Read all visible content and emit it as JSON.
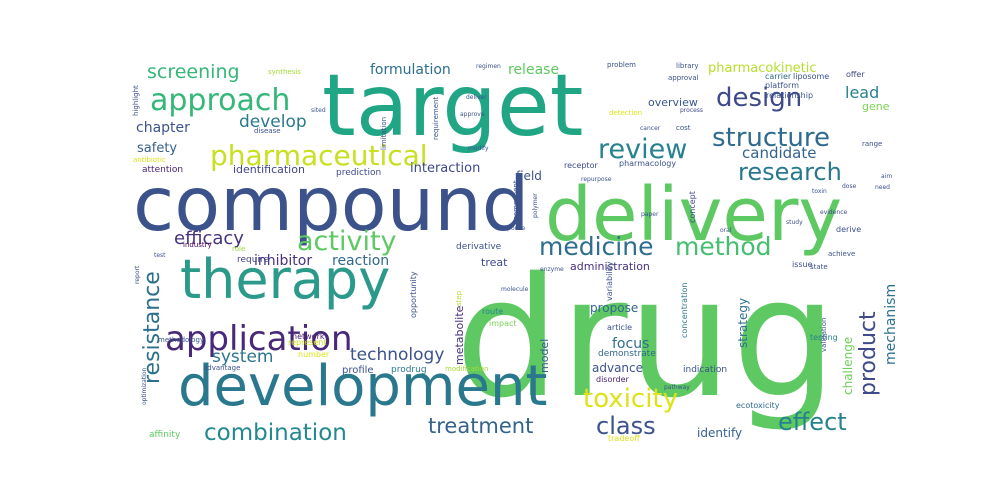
{
  "wordcloud": {
    "words": [
      {
        "text": "drug",
        "color": "#5ec962"
      },
      {
        "text": "target",
        "color": "#21a685"
      },
      {
        "text": "compound",
        "color": "#3b528b"
      },
      {
        "text": "delivery",
        "color": "#5ec962"
      },
      {
        "text": "development",
        "color": "#2a788e"
      },
      {
        "text": "therapy",
        "color": "#2c9a8a"
      },
      {
        "text": "application",
        "color": "#482878"
      },
      {
        "text": "pharmaceutical",
        "color": "#c8e020"
      },
      {
        "text": "approach",
        "color": "#35b779"
      },
      {
        "text": "activity",
        "color": "#5ec962"
      },
      {
        "text": "structure",
        "color": "#2f6b8e"
      },
      {
        "text": "design",
        "color": "#3e4a89"
      },
      {
        "text": "review",
        "color": "#26828e"
      },
      {
        "text": "research",
        "color": "#2a788e"
      },
      {
        "text": "medicine",
        "color": "#2e6e8e"
      },
      {
        "text": "method",
        "color": "#44bf70"
      },
      {
        "text": "toxicity",
        "color": "#dde318"
      },
      {
        "text": "class",
        "color": "#3b528b"
      },
      {
        "text": "effect",
        "color": "#26828e"
      },
      {
        "text": "treatment",
        "color": "#33638d"
      },
      {
        "text": "combination",
        "color": "#23898e"
      },
      {
        "text": "resistance",
        "color": "#2d708e"
      },
      {
        "text": "product",
        "color": "#3e4a89"
      },
      {
        "text": "screening",
        "color": "#35b779"
      },
      {
        "text": "efficacy",
        "color": "#46337e"
      },
      {
        "text": "technology",
        "color": "#3b528b"
      },
      {
        "text": "system",
        "color": "#2c738e"
      },
      {
        "text": "develop",
        "color": "#2a788e"
      },
      {
        "text": "inhibitor",
        "color": "#46327e"
      },
      {
        "text": "reaction",
        "color": "#31688e"
      },
      {
        "text": "candidate",
        "color": "#33638d"
      },
      {
        "text": "formulation",
        "color": "#2e6e8e"
      },
      {
        "text": "release",
        "color": "#5ec962"
      },
      {
        "text": "pharmacokinetic",
        "color": "#b5de2b"
      },
      {
        "text": "lead",
        "color": "#26828e"
      },
      {
        "text": "gene",
        "color": "#7ad151"
      },
      {
        "text": "chapter",
        "color": "#3b528b"
      },
      {
        "text": "safety",
        "color": "#355f8d"
      },
      {
        "text": "interaction",
        "color": "#3e4a89"
      },
      {
        "text": "identification",
        "color": "#404688"
      },
      {
        "text": "mechanism",
        "color": "#2c718e"
      },
      {
        "text": "challenge",
        "color": "#6ece58"
      },
      {
        "text": "strategy",
        "color": "#2d708e"
      },
      {
        "text": "advance",
        "color": "#3b528b"
      },
      {
        "text": "focus",
        "color": "#2e6e8e"
      },
      {
        "text": "propose",
        "color": "#31688e"
      },
      {
        "text": "model",
        "color": "#365c8d"
      },
      {
        "text": "identify",
        "color": "#355f8d"
      },
      {
        "text": "field",
        "color": "#3b528b"
      },
      {
        "text": "overview",
        "color": "#38588c"
      },
      {
        "text": "metabolite",
        "color": "#472d7b"
      },
      {
        "text": "administration",
        "color": "#46337e"
      },
      {
        "text": "treat",
        "color": "#3f4889"
      },
      {
        "text": "derivative",
        "color": "#3b528b"
      },
      {
        "text": "prediction",
        "color": "#3e4a89"
      },
      {
        "text": "attention",
        "color": "#481f70"
      },
      {
        "text": "industry",
        "color": "#440154"
      },
      {
        "text": "require",
        "color": "#414487"
      },
      {
        "text": "role",
        "color": "#9bd93c"
      },
      {
        "text": "network",
        "color": "#481a6c"
      },
      {
        "text": "number",
        "color": "#dde318"
      },
      {
        "text": "represent",
        "color": "#cde11d"
      },
      {
        "text": "profile",
        "color": "#3b528b"
      },
      {
        "text": "prodrug",
        "color": "#2a788e"
      },
      {
        "text": "modification",
        "color": "#a5db36"
      },
      {
        "text": "demonstrate",
        "color": "#31688e"
      },
      {
        "text": "indication",
        "color": "#3b528b"
      },
      {
        "text": "disorder",
        "color": "#481f70"
      },
      {
        "text": "ecotoxicity",
        "color": "#31688e"
      },
      {
        "text": "affinity",
        "color": "#5ec962"
      },
      {
        "text": "tradeoff",
        "color": "#dde318"
      },
      {
        "text": "article",
        "color": "#3b528b"
      },
      {
        "text": "impact",
        "color": "#7ad151"
      },
      {
        "text": "route",
        "color": "#26828e"
      },
      {
        "text": "step",
        "color": "#b5de2b"
      },
      {
        "text": "opportunity",
        "color": "#3b528b"
      },
      {
        "text": "testing",
        "color": "#26828e"
      },
      {
        "text": "issue",
        "color": "#3e4a89"
      },
      {
        "text": "state",
        "color": "#3b528b"
      },
      {
        "text": "achieve",
        "color": "#3b528b"
      },
      {
        "text": "derive",
        "color": "#3b528b"
      },
      {
        "text": "evidence",
        "color": "#3e4a89"
      },
      {
        "text": "validation",
        "color": "#3b528b"
      },
      {
        "text": "concentration",
        "color": "#2a788e"
      },
      {
        "text": "variability",
        "color": "#3b528b"
      },
      {
        "text": "receptor",
        "color": "#3e4a89"
      },
      {
        "text": "pharmacology",
        "color": "#3b528b"
      },
      {
        "text": "concept",
        "color": "#3e4a89"
      },
      {
        "text": "platform",
        "color": "#3b528b"
      },
      {
        "text": "relationship",
        "color": "#3b528b"
      },
      {
        "text": "carrier",
        "color": "#31688e"
      },
      {
        "text": "liposome",
        "color": "#3b528b"
      },
      {
        "text": "offer",
        "color": "#3e4a89"
      },
      {
        "text": "library",
        "color": "#3b528b"
      },
      {
        "text": "problem",
        "color": "#3b528b"
      },
      {
        "text": "approval",
        "color": "#3b528b"
      },
      {
        "text": "process",
        "color": "#3e4a89"
      },
      {
        "text": "cost",
        "color": "#3b528b"
      },
      {
        "text": "detection",
        "color": "#dde318"
      },
      {
        "text": "requirement",
        "color": "#3b528b"
      },
      {
        "text": "limitation",
        "color": "#3b528b"
      },
      {
        "text": "synthesis",
        "color": "#a5db36"
      },
      {
        "text": "regimen",
        "color": "#3b528b"
      },
      {
        "text": "deliver",
        "color": "#3b528b"
      },
      {
        "text": "approve",
        "color": "#3b528b"
      },
      {
        "text": "modify",
        "color": "#3b528b"
      },
      {
        "text": "disease",
        "color": "#3b528b"
      },
      {
        "text": "sited",
        "color": "#3b528b"
      },
      {
        "text": "highlight",
        "color": "#3b528b"
      },
      {
        "text": "antibiotic",
        "color": "#dde318"
      },
      {
        "text": "component",
        "color": "#3b528b"
      },
      {
        "text": "polymer",
        "color": "#3b528b"
      },
      {
        "text": "response",
        "color": "#3b528b"
      },
      {
        "text": "repurpose",
        "color": "#3b528b"
      },
      {
        "text": "paper",
        "color": "#3b528b"
      },
      {
        "text": "range",
        "color": "#3b528b"
      },
      {
        "text": "oral",
        "color": "#3b528b"
      },
      {
        "text": "optimization",
        "color": "#3b528b"
      },
      {
        "text": "methodology",
        "color": "#3b528b"
      },
      {
        "text": "advantage",
        "color": "#3b528b"
      },
      {
        "text": "report",
        "color": "#3b528b"
      },
      {
        "text": "test",
        "color": "#3b528b"
      },
      {
        "text": "cancer",
        "color": "#3b528b"
      },
      {
        "text": "molecule",
        "color": "#3b528b"
      },
      {
        "text": "enzyme",
        "color": "#3b528b"
      },
      {
        "text": "pathway",
        "color": "#3b528b"
      },
      {
        "text": "study",
        "color": "#3b528b"
      },
      {
        "text": "dose",
        "color": "#3b528b"
      },
      {
        "text": "aim",
        "color": "#3b528b"
      },
      {
        "text": "need",
        "color": "#3b528b"
      },
      {
        "text": "toxin",
        "color": "#3b528b"
      }
    ]
  }
}
